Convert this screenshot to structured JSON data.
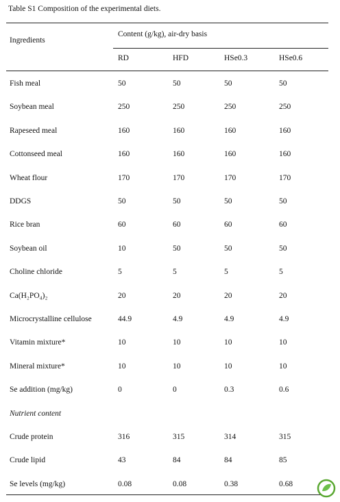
{
  "title": "Table S1 Composition of the experimental diets.",
  "table": {
    "header": [
      "Ingredients",
      "Content (g/kg), air-dry basis"
    ],
    "columns": [
      "RD",
      "HFD",
      "HSe0.3",
      "HSe0.6"
    ],
    "rows": [
      [
        "Fish meal",
        "50",
        "50",
        "50",
        "50"
      ],
      [
        "Soybean meal",
        "250",
        "250",
        "250",
        "250"
      ],
      [
        "Rapeseed meal",
        "160",
        "160",
        "160",
        "160"
      ],
      [
        "Cottonseed meal",
        "160",
        "160",
        "160",
        "160"
      ],
      [
        "Wheat flour",
        "170",
        "170",
        "170",
        "170"
      ],
      [
        "DDGS",
        "50",
        "50",
        "50",
        "50"
      ],
      [
        "Rice bran",
        "60",
        "60",
        "60",
        "60"
      ],
      [
        "Soybean oil",
        "10",
        "50",
        "50",
        "50"
      ],
      [
        "Choline chloride",
        "5",
        "5",
        "5",
        "5"
      ],
      [
        "Ca(H₂PO₄)₂",
        "20",
        "20",
        "20",
        "20"
      ],
      [
        "Microcrystalline cellulose",
        "44.9",
        "4.9",
        "4.9",
        "4.9"
      ],
      [
        "Vitamin mixture*",
        "10",
        "10",
        "10",
        "10"
      ],
      [
        "Mineral mixture*",
        "10",
        "10",
        "10",
        "10"
      ],
      [
        "Se addition (mg/kg)",
        "0",
        "0",
        "0.3",
        "0.6"
      ]
    ],
    "section": "Nutrient content",
    "nutrient_rows": [
      [
        "Crude protein",
        "316",
        "315",
        "314",
        "315"
      ],
      [
        "Crude lipid",
        "43",
        "84",
        "84",
        "85"
      ],
      [
        "Se levels (mg/kg)",
        "0.08",
        "0.08",
        "0.38",
        "0.68"
      ]
    ]
  }
}
